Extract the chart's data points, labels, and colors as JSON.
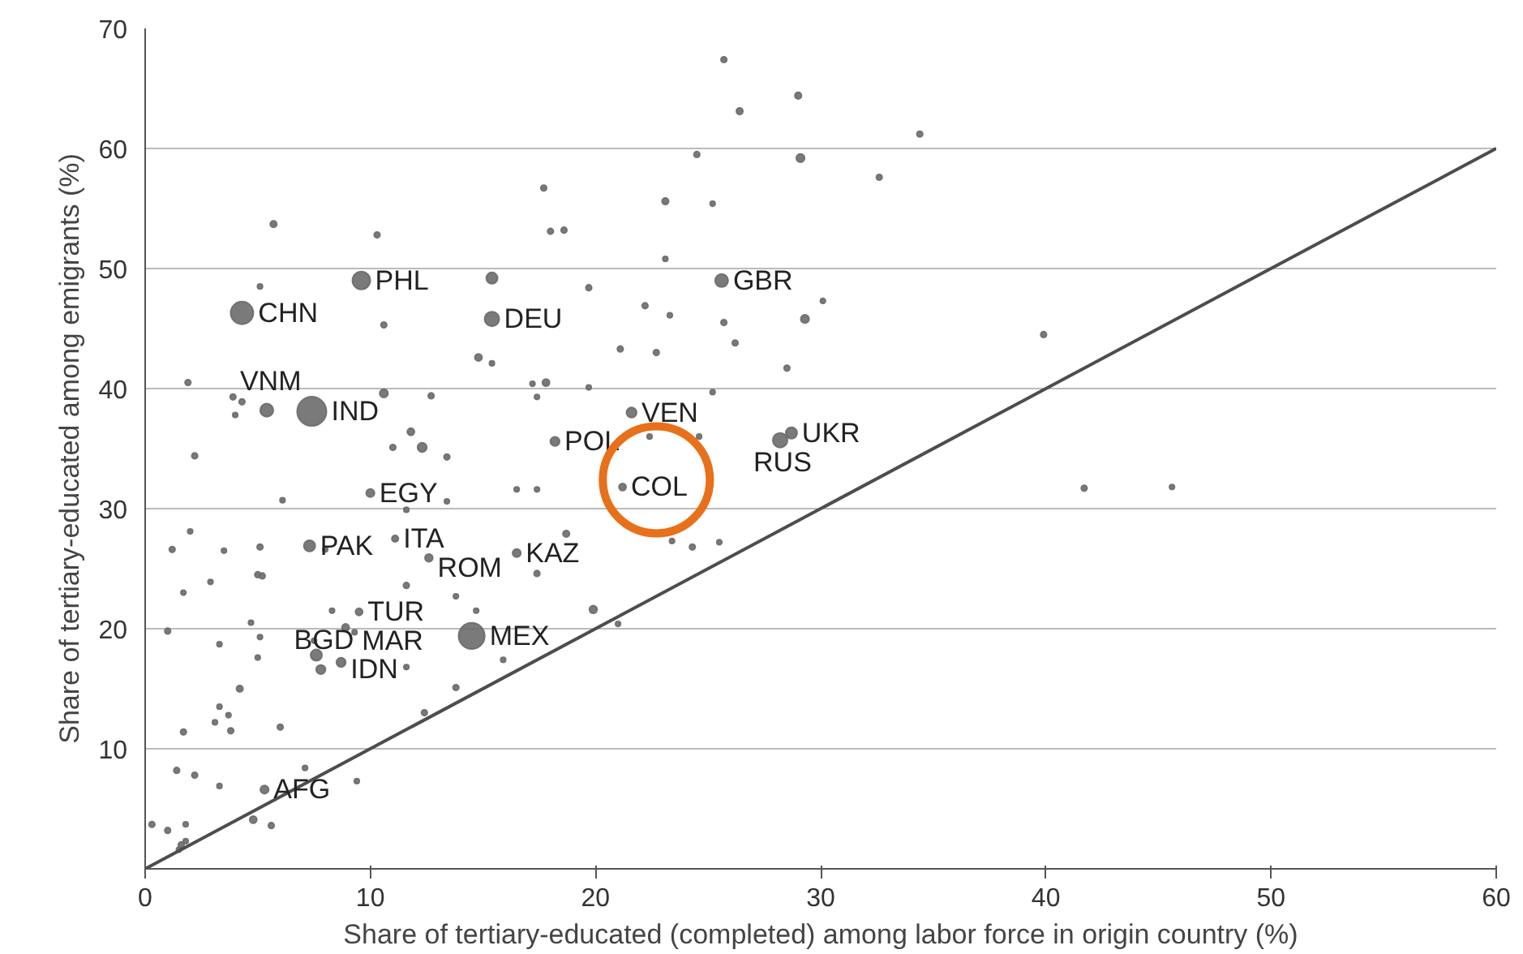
{
  "chart_data": {
    "type": "bubble",
    "xlabel": "Share of tertiary-educated (completed) among labor force in origin country (%)",
    "ylabel": "Share of tertiary-educated among emigrants (%)",
    "xlim": [
      0,
      60
    ],
    "ylim": [
      0,
      70
    ],
    "xticks": [
      0,
      10,
      20,
      30,
      40,
      50,
      60
    ],
    "yticks": [
      {
        "value": 0,
        "label": null
      },
      10,
      20,
      30,
      40,
      50,
      60,
      70
    ],
    "grid": "y",
    "series": [
      {
        "color": "#6b6b6b",
        "x": [
          7.4,
          5.4,
          4.3,
          9.6,
          15.4,
          5.7,
          10.3,
          5.1,
          15.4,
          10.6,
          14.8,
          15.4,
          1.9,
          3.9,
          4.3,
          4.0,
          10.6,
          12.7,
          11.8,
          12.3,
          11.0,
          13.4,
          2.2,
          25.7,
          29.0,
          26.4,
          29.1,
          24.5,
          32.6,
          34.4,
          17.7,
          23.1,
          25.2,
          18.0,
          18.6,
          23.1,
          25.6,
          30.1,
          22.2,
          23.3,
          29.3,
          25.7,
          19.7,
          21.1,
          22.7,
          26.2,
          28.5,
          17.8,
          17.2,
          17.4,
          19.7,
          25.2,
          21.6,
          18.2,
          28.7,
          28.2,
          22.4,
          24.6,
          21.2,
          16.5,
          17.4,
          16.5,
          18.7,
          24.3,
          25.5,
          23.4,
          19.9,
          21.0,
          15.9,
          17.4,
          10.0,
          11.6,
          13.4,
          6.1,
          2.0,
          7.3,
          8.0,
          11.1,
          12.6,
          5.1,
          3.5,
          1.2,
          5.0,
          5.2,
          2.9,
          1.7,
          11.6,
          13.8,
          14.7,
          9.5,
          8.3,
          4.7,
          1.0,
          8.9,
          9.3,
          14.5,
          5.1,
          3.3,
          7.5,
          7.6,
          7.8,
          8.7,
          5.0,
          11.6,
          4.2,
          3.3,
          3.7,
          3.1,
          3.8,
          6.0,
          12.4,
          13.8,
          1.7,
          1.4,
          2.2,
          3.3,
          7.1,
          5.3,
          9.4,
          4.8,
          0.3,
          1.0,
          1.8,
          1.8,
          1.5,
          1.6,
          5.6,
          39.9,
          41.7,
          45.6
        ],
        "values": [
          38.1,
          38.2,
          46.3,
          49.0,
          45.8,
          53.7,
          52.8,
          48.5,
          49.2,
          45.3,
          42.6,
          42.1,
          40.5,
          39.3,
          38.9,
          37.8,
          39.6,
          39.4,
          36.4,
          35.1,
          35.1,
          34.3,
          34.4,
          67.4,
          64.4,
          63.1,
          59.2,
          59.5,
          57.6,
          61.2,
          56.7,
          55.6,
          55.4,
          53.1,
          53.2,
          50.8,
          49.0,
          47.3,
          46.9,
          46.1,
          45.8,
          45.5,
          48.4,
          43.3,
          43.0,
          43.8,
          41.7,
          40.5,
          40.4,
          39.3,
          40.1,
          39.7,
          38.0,
          35.6,
          36.3,
          35.7,
          36.0,
          36.0,
          31.8,
          31.6,
          31.6,
          26.3,
          27.9,
          26.8,
          27.2,
          27.3,
          21.6,
          20.4,
          17.4,
          24.6,
          31.3,
          29.9,
          30.6,
          30.7,
          28.1,
          26.9,
          26.6,
          27.5,
          25.9,
          26.8,
          26.5,
          26.6,
          24.5,
          24.4,
          23.9,
          23.0,
          23.6,
          22.7,
          21.5,
          21.4,
          21.5,
          20.5,
          19.8,
          20.1,
          19.7,
          19.4,
          19.3,
          18.7,
          19.0,
          17.8,
          16.6,
          17.2,
          17.6,
          16.8,
          15.0,
          13.5,
          12.8,
          12.2,
          11.5,
          11.8,
          13.0,
          15.1,
          11.4,
          8.2,
          7.8,
          6.9,
          8.4,
          6.6,
          7.3,
          4.1,
          3.7,
          3.2,
          3.7,
          2.3,
          1.6,
          2.0,
          3.6,
          44.5,
          31.7,
          31.8
        ],
        "sizes": [
          1,
          0.2,
          0.6,
          0.37,
          0.25,
          0.05,
          0.04,
          0.03,
          0.15,
          0.04,
          0.06,
          0.03,
          0.04,
          0.04,
          0.04,
          0.03,
          0.08,
          0.04,
          0.06,
          0.1,
          0.04,
          0.04,
          0.04,
          0.04,
          0.05,
          0.05,
          0.08,
          0.04,
          0.04,
          0.04,
          0.04,
          0.05,
          0.03,
          0.04,
          0.04,
          0.03,
          0.2,
          0.03,
          0.04,
          0.03,
          0.08,
          0.04,
          0.04,
          0.04,
          0.04,
          0.04,
          0.04,
          0.06,
          0.03,
          0.03,
          0.03,
          0.03,
          0.12,
          0.1,
          0.15,
          0.25,
          0.03,
          0.03,
          0.06,
          0.03,
          0.03,
          0.08,
          0.05,
          0.04,
          0.03,
          0.03,
          0.07,
          0.03,
          0.03,
          0.04,
          0.08,
          0.03,
          0.03,
          0.03,
          0.03,
          0.15,
          0.03,
          0.05,
          0.07,
          0.04,
          0.03,
          0.04,
          0.04,
          0.04,
          0.03,
          0.03,
          0.04,
          0.03,
          0.03,
          0.06,
          0.03,
          0.03,
          0.04,
          0.06,
          0.03,
          0.8,
          0.03,
          0.03,
          0.03,
          0.15,
          0.1,
          0.1,
          0.03,
          0.03,
          0.05,
          0.03,
          0.03,
          0.03,
          0.04,
          0.04,
          0.04,
          0.04,
          0.04,
          0.04,
          0.04,
          0.03,
          0.03,
          0.08,
          0.03,
          0.06,
          0.04,
          0.04,
          0.03,
          0.03,
          0.03,
          0.04,
          0.04,
          0.04,
          0.04,
          0.03
        ]
      },
      {
        "type": "line",
        "color": "#4d4d4d",
        "x": [
          0,
          60
        ],
        "values": [
          0,
          60
        ]
      }
    ],
    "annotations": [
      {
        "text": "PHL",
        "x": 9.6,
        "y": 49.0
      },
      {
        "text": "CHN",
        "x": 4.3,
        "y": 46.3
      },
      {
        "text": "DEU",
        "x": 15.4,
        "y": 45.8
      },
      {
        "text": "GBR",
        "x": 25.6,
        "y": 49.0
      },
      {
        "text": "VNM",
        "x": 5.4,
        "y": 38.2
      },
      {
        "text": "IND",
        "x": 7.4,
        "y": 38.1
      },
      {
        "text": "VEN",
        "x": 21.6,
        "y": 38.0
      },
      {
        "text": "UKR",
        "x": 28.7,
        "y": 36.3
      },
      {
        "text": "RUS",
        "x": 28.2,
        "y": 35.7
      },
      {
        "text": "POL",
        "x": 18.2,
        "y": 35.6
      },
      {
        "text": "COL",
        "x": 21.2,
        "y": 31.8
      },
      {
        "text": "EGY",
        "x": 10.0,
        "y": 31.3
      },
      {
        "text": "PAK",
        "x": 7.3,
        "y": 26.9
      },
      {
        "text": "ITA",
        "x": 11.1,
        "y": 27.5
      },
      {
        "text": "ROM",
        "x": 12.6,
        "y": 25.9
      },
      {
        "text": "KAZ",
        "x": 16.5,
        "y": 26.3
      },
      {
        "text": "TUR",
        "x": 9.5,
        "y": 21.4
      },
      {
        "text": "MAR",
        "x": 9.3,
        "y": 19.7
      },
      {
        "text": "MEX",
        "x": 14.5,
        "y": 19.4
      },
      {
        "text": "IDN",
        "x": 8.7,
        "y": 17.2
      },
      {
        "text": "BGD",
        "x": 7.8,
        "y": 16.6
      },
      {
        "text": "AFG",
        "x": 5.3,
        "y": 6.6
      }
    ]
  }
}
